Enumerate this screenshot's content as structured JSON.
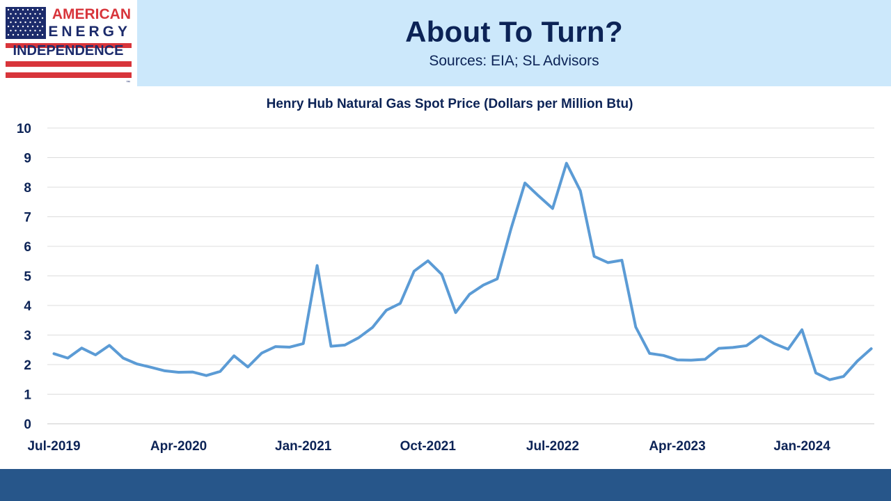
{
  "slide": {
    "title": "About To Turn?",
    "subtitle": "Sources: EIA; SL Advisors",
    "logo": {
      "line1": "AMERICAN",
      "line2": "ENERGY",
      "line3": "INDEPENDENCE",
      "mark": "™"
    },
    "colors": {
      "header_band": "#cce8fb",
      "title_text": "#0c2356",
      "footer_band": "#27568a",
      "logo_red": "#d8353b",
      "logo_navy": "#1c2b6b",
      "series_line": "#5b9bd5"
    }
  },
  "chart_data": {
    "type": "line",
    "title": "Henry Hub Natural Gas Spot Price (Dollars per Million Btu)",
    "xlabel": "",
    "ylabel": "",
    "ylim": [
      0,
      10
    ],
    "yticks": [
      "0",
      "1",
      "2",
      "3",
      "4",
      "5",
      "6",
      "7",
      "8",
      "9",
      "10"
    ],
    "xtick_labels": [
      "Jul-2019",
      "Apr-2020",
      "Jan-2021",
      "Oct-2021",
      "Jul-2022",
      "Apr-2023",
      "Jan-2024"
    ],
    "grid": "horizontal",
    "legend": "none",
    "x": [
      "2019-07",
      "2019-08",
      "2019-09",
      "2019-10",
      "2019-11",
      "2019-12",
      "2020-01",
      "2020-02",
      "2020-03",
      "2020-04",
      "2020-05",
      "2020-06",
      "2020-07",
      "2020-08",
      "2020-09",
      "2020-10",
      "2020-11",
      "2020-12",
      "2021-01",
      "2021-02",
      "2021-03",
      "2021-04",
      "2021-05",
      "2021-06",
      "2021-07",
      "2021-08",
      "2021-09",
      "2021-10",
      "2021-11",
      "2021-12",
      "2022-01",
      "2022-02",
      "2022-03",
      "2022-04",
      "2022-05",
      "2022-06",
      "2022-07",
      "2022-08",
      "2022-09",
      "2022-10",
      "2022-11",
      "2022-12",
      "2023-01",
      "2023-02",
      "2023-03",
      "2023-04",
      "2023-05",
      "2023-06",
      "2023-07",
      "2023-08",
      "2023-09",
      "2023-10",
      "2023-11",
      "2023-12",
      "2024-01",
      "2024-02",
      "2024-03",
      "2024-04",
      "2024-05",
      "2024-06"
    ],
    "series": [
      {
        "values": [
          2.37,
          2.22,
          2.56,
          2.33,
          2.65,
          2.22,
          2.02,
          1.91,
          1.79,
          1.74,
          1.75,
          1.63,
          1.77,
          2.3,
          1.92,
          2.39,
          2.61,
          2.59,
          2.71,
          5.35,
          2.62,
          2.66,
          2.91,
          3.26,
          3.84,
          4.07,
          5.16,
          5.51,
          5.05,
          3.76,
          4.38,
          4.69,
          4.9,
          6.6,
          8.14,
          7.7,
          7.28,
          8.81,
          7.88,
          5.66,
          5.45,
          5.53,
          3.27,
          2.38,
          2.31,
          2.16,
          2.15,
          2.18,
          2.55,
          2.58,
          2.64,
          2.98,
          2.71,
          2.52,
          3.18,
          1.72,
          1.49,
          1.6,
          2.12,
          2.54
        ]
      }
    ]
  }
}
